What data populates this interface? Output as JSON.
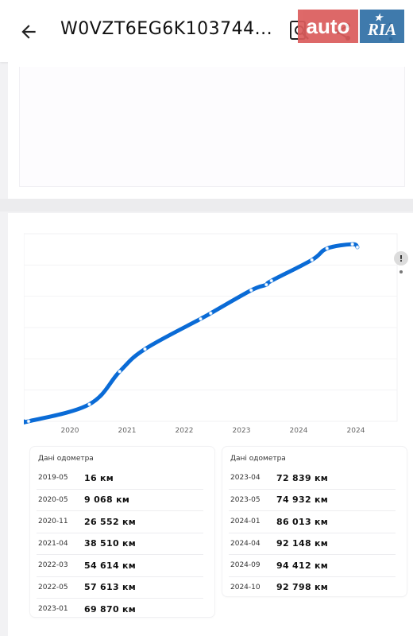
{
  "header": {
    "title": "W0VZT6EG6K103744...",
    "logo_auto": "auto",
    "logo_ria": "RIA"
  },
  "icons": {
    "back": "arrow-left-icon",
    "search": "search-icon",
    "share": "share-icon",
    "more": "more-vert-icon"
  },
  "colors": {
    "line": "#0a6bd6",
    "logo_red": "#db5c5c",
    "logo_blue": "#2f6fa6"
  },
  "chart_data": {
    "type": "line",
    "x_ticks": [
      "2020",
      "2021",
      "2022",
      "2023",
      "2024",
      "2024"
    ],
    "series": [
      {
        "x": [
          "2019-05",
          "2020-05",
          "2020-11",
          "2021-04",
          "2022-03",
          "2022-05",
          "2023-01",
          "2023-04",
          "2023-05",
          "2024-01",
          "2024-04",
          "2024-09",
          "2024-10"
        ],
        "values": [
          16,
          9068,
          26552,
          38510,
          54614,
          57613,
          69870,
          72839,
          74932,
          86013,
          92148,
          94412,
          92798
        ]
      }
    ],
    "ylim": [
      0,
      100000
    ],
    "grid": true,
    "legend": "none"
  },
  "alert": {
    "label": "!"
  },
  "odometer": {
    "left": {
      "title": "Дані одометра",
      "rows": [
        {
          "date": "2019-05",
          "km": "16 км"
        },
        {
          "date": "2020-05",
          "km": "9 068 км"
        },
        {
          "date": "2020-11",
          "km": "26 552 км"
        },
        {
          "date": "2021-04",
          "km": "38 510 км"
        },
        {
          "date": "2022-03",
          "km": "54 614 км"
        },
        {
          "date": "2022-05",
          "km": "57 613 км"
        },
        {
          "date": "2023-01",
          "km": "69 870 км"
        }
      ]
    },
    "right": {
      "title": "Дані одометра",
      "rows": [
        {
          "date": "2023-04",
          "km": "72 839 км"
        },
        {
          "date": "2023-05",
          "km": "74 932 км"
        },
        {
          "date": "2024-01",
          "km": "86 013 км"
        },
        {
          "date": "2024-04",
          "km": "92 148 км"
        },
        {
          "date": "2024-09",
          "km": "94 412 км"
        },
        {
          "date": "2024-10",
          "km": "92 798 км"
        }
      ]
    }
  }
}
